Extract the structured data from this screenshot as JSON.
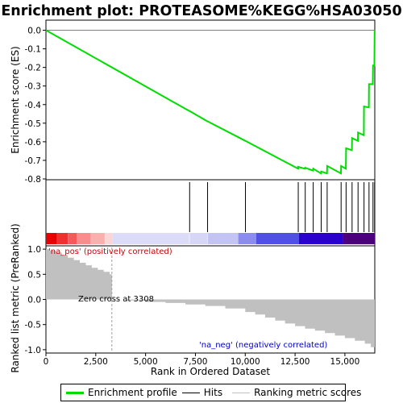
{
  "chart_data": {
    "type": "line",
    "title": "Enrichment plot: PROTEASOME%KEGG%HSA03050",
    "xlabel": "Rank in Ordered Dataset",
    "xlim": [
      0,
      16500
    ],
    "x_ticks": [
      0,
      2500,
      5000,
      7500,
      10000,
      12500,
      15000
    ],
    "x_tick_labels": [
      "0",
      "2,500",
      "5,000",
      "7,500",
      "10,000",
      "12,500",
      "15,000"
    ],
    "es_panel": {
      "ylabel": "Enrichment score (ES)",
      "ylim": [
        -0.8,
        0.05
      ],
      "y_ticks": [
        0.0,
        -0.1,
        -0.2,
        -0.3,
        -0.4,
        -0.5,
        -0.6,
        -0.7,
        -0.8
      ],
      "y_tick_labels": [
        "0.0",
        "-0.1",
        "-0.2",
        "-0.3",
        "-0.4",
        "-0.5",
        "-0.6",
        "-0.7",
        "-0.8"
      ],
      "series_name": "Enrichment profile",
      "color": "#00dd00",
      "x": [
        0,
        7200,
        7210,
        8100,
        8110,
        10000,
        10010,
        12650,
        12660,
        12650,
        13000,
        13010,
        13400,
        13410,
        13800,
        13810,
        14100,
        14110,
        14800,
        14810,
        15050,
        15060,
        15350,
        15360,
        15650,
        15660,
        15950,
        15960,
        16200,
        16210,
        16400,
        16410,
        16480,
        16490
      ],
      "y": [
        0.0,
        -0.435,
        -0.435,
        -0.49,
        -0.49,
        -0.595,
        -0.595,
        -0.745,
        -0.745,
        -0.735,
        -0.745,
        -0.74,
        -0.755,
        -0.745,
        -0.77,
        -0.76,
        -0.77,
        -0.73,
        -0.77,
        -0.73,
        -0.745,
        -0.635,
        -0.645,
        -0.58,
        -0.595,
        -0.55,
        -0.565,
        -0.41,
        -0.415,
        -0.29,
        -0.29,
        -0.19,
        -0.19,
        0.0
      ]
    },
    "hits": {
      "series_name": "Hits",
      "positions": [
        7210,
        8110,
        10010,
        12660,
        13010,
        13410,
        13810,
        14110,
        14810,
        15060,
        15360,
        15660,
        15960,
        16210,
        16410,
        16490
      ]
    },
    "metric_panel": {
      "ylabel": "Ranked list metric (PreRanked)",
      "ylim": [
        -1.05,
        1.05
      ],
      "y_ticks": [
        1.0,
        0.5,
        0.0,
        -0.5,
        -1.0
      ],
      "y_tick_labels": [
        "1.0",
        "0.5",
        "0.0",
        "-0.5",
        "-1.0"
      ],
      "series_name": "Ranking metric scores",
      "fill_color": "#c0c0c0",
      "x": [
        0,
        200,
        500,
        800,
        1100,
        1400,
        1700,
        2000,
        2300,
        2600,
        2900,
        3200,
        3300,
        3310,
        4000,
        5000,
        6000,
        7000,
        8000,
        9000,
        10000,
        10500,
        11000,
        11500,
        12000,
        12500,
        13000,
        13500,
        14000,
        14500,
        15000,
        15500,
        16000,
        16300,
        16500
      ],
      "values": [
        1.0,
        0.97,
        0.93,
        0.88,
        0.83,
        0.78,
        0.73,
        0.68,
        0.63,
        0.59,
        0.55,
        0.5,
        0.45,
        0.0,
        -0.02,
        -0.05,
        -0.07,
        -0.1,
        -0.13,
        -0.18,
        -0.25,
        -0.3,
        -0.36,
        -0.42,
        -0.48,
        -0.53,
        -0.58,
        -0.62,
        -0.67,
        -0.72,
        -0.77,
        -0.82,
        -0.88,
        -0.95,
        -1.0
      ]
    },
    "annotations": {
      "pos_label": "'na_pos' (positively correlated)",
      "pos_color": "#cc0000",
      "neg_label": "'na_neg' (negatively correlated)",
      "neg_color": "#0000cc",
      "zero_cross": "Zero cross at 3308",
      "zero_cross_x": 3308
    },
    "color_bar": {
      "colors": [
        "#e80000",
        "#f45050",
        "#f98c8c",
        "#fcc2c2",
        "#dcdcf8",
        "#c4c4f4",
        "#8c8cee",
        "#5050e4",
        "#2a00cc",
        "#4c007c"
      ]
    },
    "legend": {
      "items": [
        "Enrichment profile",
        "Hits",
        "Ranking metric scores"
      ],
      "placement": "bottom"
    }
  }
}
